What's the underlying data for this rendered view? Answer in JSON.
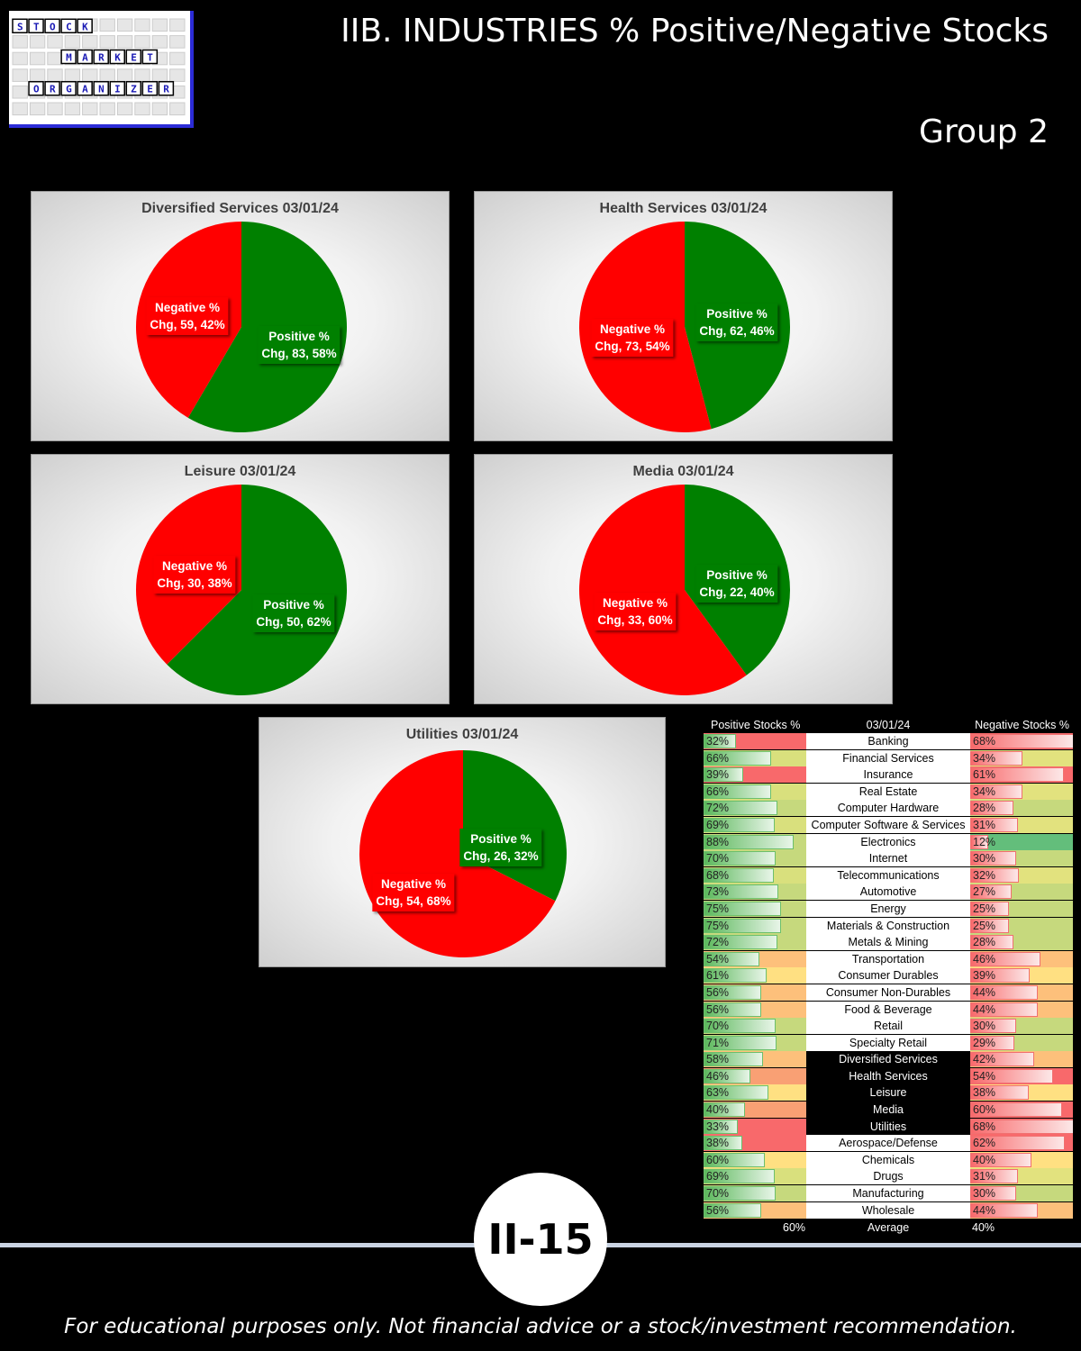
{
  "header": {
    "title": "IIB. INDUSTRIES % Positive/Negative Stocks",
    "group": "Group 2",
    "logo": {
      "line1": "STOCK",
      "line2": "MARKET",
      "line3": "ORGANIZER"
    }
  },
  "colors": {
    "positive": "#008000",
    "negative": "#ff0000"
  },
  "chart_data": [
    {
      "type": "pie",
      "title": "Diversified Services 03/01/24",
      "slices": [
        {
          "name": "Negative % Chg",
          "value": 59,
          "percent": 42,
          "label": "Negative % Chg, 59, 42%"
        },
        {
          "name": "Positive % Chg",
          "value": 83,
          "percent": 58,
          "label": "Positive % Chg, 83, 58%"
        }
      ]
    },
    {
      "type": "pie",
      "title": "Health Services 03/01/24",
      "slices": [
        {
          "name": "Negative % Chg",
          "value": 73,
          "percent": 54,
          "label": "Negative % Chg, 73, 54%"
        },
        {
          "name": "Positive % Chg",
          "value": 62,
          "percent": 46,
          "label": "Positive % Chg, 62, 46%"
        }
      ]
    },
    {
      "type": "pie",
      "title": "Leisure 03/01/24",
      "slices": [
        {
          "name": "Negative % Chg",
          "value": 30,
          "percent": 38,
          "label": "Negative % Chg, 30, 38%"
        },
        {
          "name": "Positive % Chg",
          "value": 50,
          "percent": 62,
          "label": "Positive % Chg, 50, 62%"
        }
      ]
    },
    {
      "type": "pie",
      "title": "Media 03/01/24",
      "slices": [
        {
          "name": "Negative % Chg",
          "value": 33,
          "percent": 60,
          "label": "Negative % Chg, 33, 60%"
        },
        {
          "name": "Positive % Chg",
          "value": 22,
          "percent": 40,
          "label": "Positive % Chg, 22, 40%"
        }
      ]
    },
    {
      "type": "pie",
      "title": "Utilities 03/01/24",
      "slices": [
        {
          "name": "Negative % Chg",
          "value": 54,
          "percent": 68,
          "label": "Negative % Chg, 54, 68%"
        },
        {
          "name": "Positive % Chg",
          "value": 26,
          "percent": 32,
          "label": "Positive % Chg, 26, 32%"
        }
      ]
    },
    {
      "type": "table",
      "header": {
        "left": "Positive Stocks %",
        "middle": "03/01/24",
        "right": "Negative Stocks %"
      },
      "rows": [
        {
          "name": "Banking",
          "pos": 32,
          "neg": 68
        },
        {
          "name": "Financial Services",
          "pos": 66,
          "neg": 34
        },
        {
          "name": "Insurance",
          "pos": 39,
          "neg": 61
        },
        {
          "name": "Real Estate",
          "pos": 66,
          "neg": 34
        },
        {
          "name": "Computer Hardware",
          "pos": 72,
          "neg": 28
        },
        {
          "name": "Computer Software & Services",
          "pos": 69,
          "neg": 31
        },
        {
          "name": "Electronics",
          "pos": 88,
          "neg": 12
        },
        {
          "name": "Internet",
          "pos": 70,
          "neg": 30
        },
        {
          "name": "Telecommunications",
          "pos": 68,
          "neg": 32
        },
        {
          "name": "Automotive",
          "pos": 73,
          "neg": 27
        },
        {
          "name": "Energy",
          "pos": 75,
          "neg": 25
        },
        {
          "name": "Materials & Construction",
          "pos": 75,
          "neg": 25
        },
        {
          "name": "Metals & Mining",
          "pos": 72,
          "neg": 28
        },
        {
          "name": "Transportation",
          "pos": 54,
          "neg": 46
        },
        {
          "name": "Consumer Durables",
          "pos": 61,
          "neg": 39
        },
        {
          "name": "Consumer Non-Durables",
          "pos": 56,
          "neg": 44
        },
        {
          "name": "Food & Beverage",
          "pos": 56,
          "neg": 44
        },
        {
          "name": "Retail",
          "pos": 70,
          "neg": 30
        },
        {
          "name": "Specialty Retail",
          "pos": 71,
          "neg": 29
        },
        {
          "name": "Diversified Services",
          "pos": 58,
          "neg": 42,
          "highlight": true
        },
        {
          "name": "Health Services",
          "pos": 46,
          "neg": 54,
          "highlight": true
        },
        {
          "name": "Leisure",
          "pos": 63,
          "neg": 38,
          "highlight": true
        },
        {
          "name": "Media",
          "pos": 40,
          "neg": 60,
          "highlight": true
        },
        {
          "name": "Utilities",
          "pos": 33,
          "neg": 68,
          "highlight": true
        },
        {
          "name": "Aerospace/Defense",
          "pos": 38,
          "neg": 62
        },
        {
          "name": "Chemicals",
          "pos": 60,
          "neg": 40
        },
        {
          "name": "Drugs",
          "pos": 69,
          "neg": 31
        },
        {
          "name": "Manufacturing",
          "pos": 70,
          "neg": 30
        },
        {
          "name": "Wholesale",
          "pos": 56,
          "neg": 44
        }
      ],
      "footer": {
        "left": "60%",
        "middle": "Average",
        "right": "40%"
      }
    }
  ],
  "page_number": "II-15",
  "disclaimer": "For educational purposes only. Not financial advice or a stock/investment recommendation."
}
